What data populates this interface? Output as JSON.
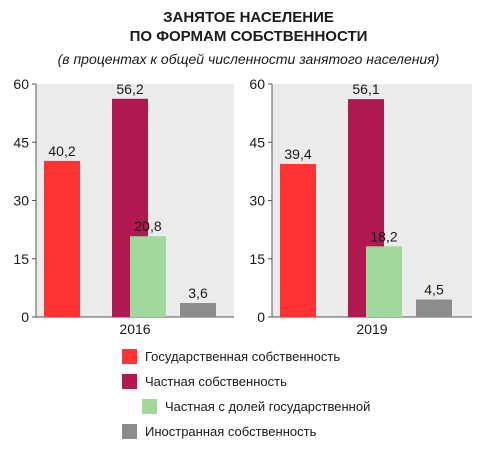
{
  "title_line1": "ЗАНЯТОЕ НАСЕЛЕНИЕ",
  "title_line2": "ПО ФОРМАМ СОБСТВЕННОСТИ",
  "subtitle": "(в процентах к общей численности занятого населения)",
  "chart_data": {
    "type": "bar",
    "title": "ЗАНЯТОЕ НАСЕЛЕНИЕ ПО ФОРМАМ СОБСТВЕННОСТИ",
    "subtitle": "(в процентах к общей численности занятого населения)",
    "categories": [
      "2016",
      "2019"
    ],
    "series": [
      {
        "name": "Государственная собственность",
        "color": "#ff3333",
        "values": [
          40.2,
          39.4
        ],
        "labels": [
          "40,2",
          "39,4"
        ]
      },
      {
        "name": "Частная собственность",
        "color": "#b0194f",
        "values": [
          56.2,
          56.1
        ],
        "labels": [
          "56,2",
          "56,1"
        ]
      },
      {
        "name": "Частная с долей государственной",
        "color": "#9fd89a",
        "values": [
          20.8,
          18.2
        ],
        "labels": [
          "20,8",
          "18,2"
        ]
      },
      {
        "name": "Иностранная собственность",
        "color": "#8c8c8c",
        "values": [
          3.6,
          4.5
        ],
        "labels": [
          "3,6",
          "4,5"
        ]
      }
    ],
    "ylim": [
      0,
      60
    ],
    "yticks": [
      0,
      15,
      30,
      45,
      60
    ],
    "panel_background": "#ebebeb",
    "grid": false,
    "legend_position": "bottom"
  }
}
